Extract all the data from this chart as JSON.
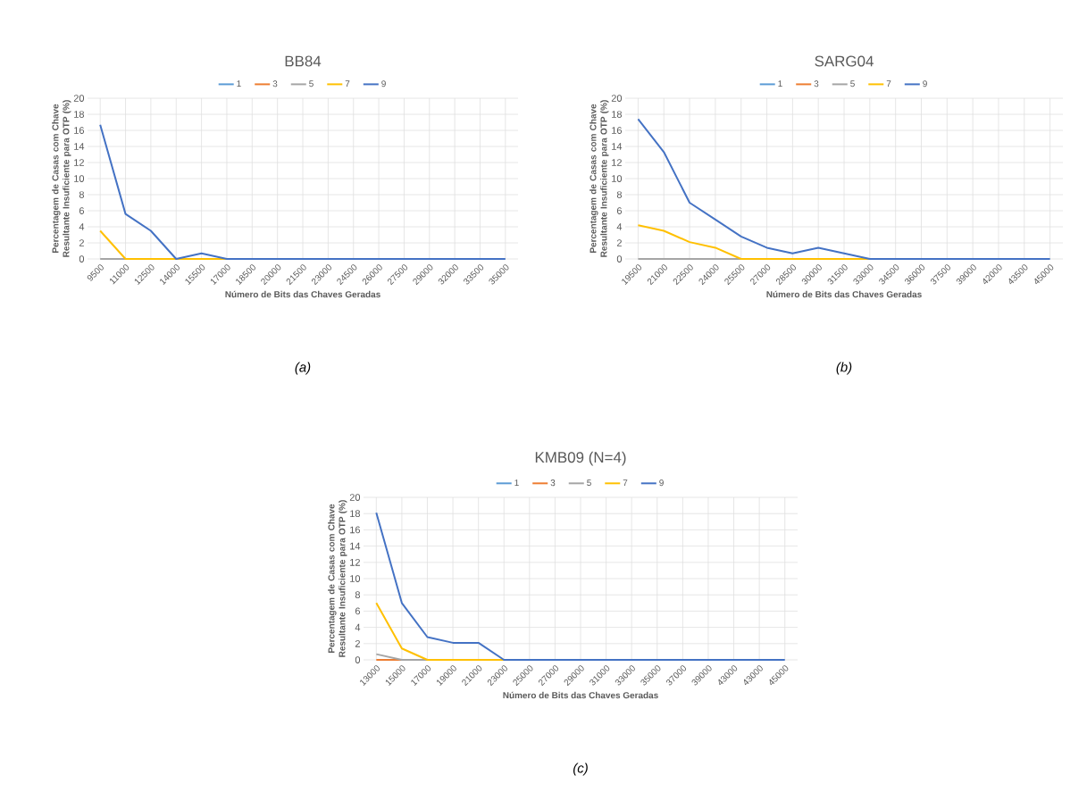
{
  "chart_data": [
    {
      "type": "line",
      "title": "BB84",
      "xlabel": "Número de Bits das Chaves Geradas",
      "ylabel": "Percentagem de Casas com Chave Resultante Insuficiente para OTP (%)",
      "categories": [
        "9500",
        "11000",
        "12500",
        "14000",
        "15500",
        "17000",
        "18500",
        "20000",
        "21500",
        "23000",
        "24500",
        "26000",
        "27500",
        "29000",
        "32000",
        "33500",
        "35000"
      ],
      "series": [
        {
          "name": "1",
          "color": "#5b9bd5",
          "values": [
            null,
            null,
            null,
            null,
            null,
            null,
            null,
            null,
            null,
            null,
            null,
            null,
            null,
            null,
            null,
            null,
            null
          ]
        },
        {
          "name": "3",
          "color": "#ed7d31",
          "values": [
            null,
            null,
            null,
            null,
            null,
            null,
            null,
            null,
            null,
            null,
            null,
            null,
            null,
            null,
            null,
            null,
            null
          ]
        },
        {
          "name": "5",
          "color": "#a5a5a5",
          "values": [
            0,
            0,
            null,
            null,
            null,
            null,
            null,
            null,
            null,
            null,
            null,
            null,
            null,
            null,
            null,
            null,
            null
          ]
        },
        {
          "name": "7",
          "color": "#ffc000",
          "values": [
            3.5,
            0,
            0,
            0,
            0,
            0,
            null,
            null,
            null,
            null,
            null,
            null,
            null,
            null,
            null,
            null,
            null
          ]
        },
        {
          "name": "9",
          "color": "#4472c4",
          "values": [
            16.7,
            5.6,
            3.5,
            0,
            0.7,
            0,
            0,
            0,
            0,
            0,
            0,
            0,
            0,
            0,
            0,
            0,
            0
          ]
        }
      ],
      "ylim": [
        0,
        20
      ],
      "yticks": [
        0,
        2,
        4,
        6,
        8,
        10,
        12,
        14,
        16,
        18,
        20
      ],
      "grid": true,
      "legend": "top",
      "marker": "none",
      "annotations": [
        "(a)"
      ]
    },
    {
      "type": "line",
      "title": "SARG04",
      "xlabel": "Número de Bits das Chaves Geradas",
      "ylabel": "Percentagem de Casas com Chave Resultante Insuficiente para OTP (%)",
      "categories": [
        "19500",
        "21000",
        "22500",
        "24000",
        "25500",
        "27000",
        "28500",
        "30000",
        "31500",
        "33000",
        "34500",
        "36000",
        "37500",
        "39000",
        "42000",
        "43500",
        "45000"
      ],
      "series": [
        {
          "name": "1",
          "color": "#5b9bd5",
          "values": [
            null,
            null,
            null,
            null,
            null,
            null,
            null,
            null,
            null,
            null,
            null,
            null,
            null,
            null,
            null,
            null,
            null
          ]
        },
        {
          "name": "3",
          "color": "#ed7d31",
          "values": [
            null,
            null,
            null,
            null,
            null,
            null,
            null,
            null,
            null,
            null,
            null,
            null,
            null,
            null,
            null,
            null,
            null
          ]
        },
        {
          "name": "5",
          "color": "#a5a5a5",
          "values": [
            0,
            0,
            0,
            0,
            0,
            null,
            null,
            null,
            null,
            null,
            null,
            null,
            null,
            null,
            null,
            null,
            null
          ]
        },
        {
          "name": "7",
          "color": "#ffc000",
          "values": [
            4.2,
            3.5,
            2.1,
            1.4,
            0,
            0,
            0,
            0,
            0,
            0,
            null,
            null,
            null,
            null,
            null,
            null,
            null
          ]
        },
        {
          "name": "9",
          "color": "#4472c4",
          "values": [
            17.4,
            13.3,
            7,
            4.9,
            2.8,
            1.4,
            0.7,
            1.4,
            0.7,
            0,
            0,
            0,
            0,
            0,
            0,
            0,
            0
          ]
        }
      ],
      "ylim": [
        0,
        20
      ],
      "yticks": [
        0,
        2,
        4,
        6,
        8,
        10,
        12,
        14,
        16,
        18,
        20
      ],
      "grid": true,
      "legend": "top",
      "marker": "none",
      "annotations": [
        "(b)"
      ]
    },
    {
      "type": "line",
      "title": "KMB09 (N=4)",
      "xlabel": "Número de Bits das Chaves Geradas",
      "ylabel": "Percentagem de Casas com Chave Resultante Insuficiente para OTP (%)",
      "categories": [
        "13000",
        "15000",
        "17000",
        "19000",
        "21000",
        "23000",
        "25000",
        "27000",
        "29000",
        "31000",
        "33000",
        "35000",
        "37000",
        "39000",
        "43000",
        "43000",
        "45000"
      ],
      "series": [
        {
          "name": "1",
          "color": "#5b9bd5",
          "values": [
            null,
            null,
            null,
            null,
            null,
            null,
            null,
            null,
            null,
            null,
            null,
            null,
            null,
            null,
            null,
            null,
            null
          ]
        },
        {
          "name": "3",
          "color": "#ed7d31",
          "values": [
            0,
            0,
            null,
            null,
            null,
            null,
            null,
            null,
            null,
            null,
            null,
            null,
            null,
            null,
            null,
            null,
            null
          ]
        },
        {
          "name": "5",
          "color": "#a5a5a5",
          "values": [
            0.7,
            0,
            0,
            null,
            null,
            null,
            null,
            null,
            null,
            null,
            null,
            null,
            null,
            null,
            null,
            null,
            null
          ]
        },
        {
          "name": "7",
          "color": "#ffc000",
          "values": [
            7,
            1.4,
            0,
            0,
            0,
            0,
            null,
            null,
            null,
            null,
            null,
            null,
            null,
            null,
            null,
            null,
            null
          ]
        },
        {
          "name": "9",
          "color": "#4472c4",
          "values": [
            18.1,
            7,
            2.8,
            2.1,
            2.1,
            0,
            0,
            0,
            0,
            0,
            0,
            0,
            0,
            0,
            0,
            0,
            0
          ]
        }
      ],
      "ylim": [
        0,
        20
      ],
      "yticks": [
        0,
        2,
        4,
        6,
        8,
        10,
        12,
        14,
        16,
        18,
        20
      ],
      "grid": true,
      "legend": "top",
      "marker": "none",
      "annotations": [
        "(c)"
      ]
    }
  ]
}
